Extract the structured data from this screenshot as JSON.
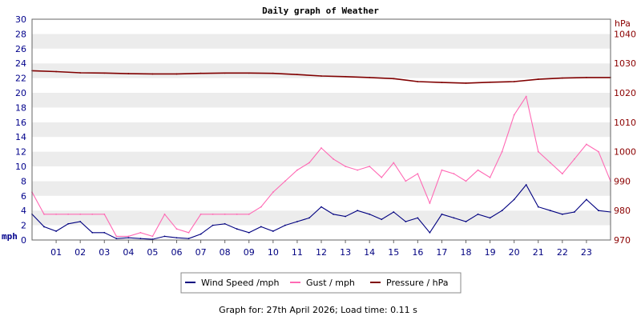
{
  "chart_data": {
    "type": "line",
    "title": "Daily graph of Weather",
    "x_ticks": [
      "01",
      "02",
      "03",
      "04",
      "05",
      "06",
      "07",
      "08",
      "09",
      "10",
      "11",
      "12",
      "13",
      "14",
      "15",
      "16",
      "17",
      "18",
      "19",
      "20",
      "21",
      "22",
      "23"
    ],
    "xlim": [
      0,
      24
    ],
    "left_axis": {
      "label": "mph",
      "ylim": [
        0,
        30
      ],
      "ticks": [
        "0",
        "2",
        "4",
        "6",
        "8",
        "10",
        "12",
        "14",
        "16",
        "18",
        "20",
        "22",
        "24",
        "26",
        "28",
        "30"
      ]
    },
    "right_axis": {
      "label": "hPa",
      "ylim": [
        970,
        1045
      ],
      "ticks": [
        "970",
        "980",
        "990",
        "1000",
        "1010",
        "1020",
        "1030",
        "1040"
      ]
    },
    "grid": true,
    "legend_position": "bottom",
    "series": [
      {
        "name": "Wind Speed /mph",
        "color": "#000080",
        "axis": "left",
        "x": [
          0,
          0.5,
          1,
          1.5,
          2,
          2.5,
          3,
          3.5,
          4,
          4.5,
          5,
          5.5,
          6,
          6.5,
          7,
          7.5,
          8,
          8.5,
          9,
          9.5,
          10,
          10.5,
          11,
          11.5,
          12,
          12.5,
          13,
          13.5,
          14,
          14.5,
          15,
          15.5,
          16,
          16.5,
          17,
          17.5,
          18,
          18.5,
          19,
          19.5,
          20,
          20.5,
          21,
          21.5,
          22,
          22.5,
          23,
          23.5,
          24
        ],
        "values": [
          3.5,
          1.8,
          1.2,
          2.2,
          2.5,
          1.0,
          1.0,
          0.2,
          0.3,
          0.2,
          0.1,
          0.5,
          0.3,
          0.2,
          0.8,
          2.0,
          2.2,
          1.5,
          1.0,
          1.8,
          1.2,
          2.0,
          2.5,
          3.0,
          4.5,
          3.5,
          3.2,
          4.0,
          3.5,
          2.8,
          3.8,
          2.5,
          3.0,
          1.0,
          3.5,
          3.0,
          2.5,
          3.5,
          3.0,
          4.0,
          5.5,
          7.5,
          4.5,
          4.0,
          3.5,
          3.8,
          5.5,
          4.0,
          3.8
        ]
      },
      {
        "name": "Gust / mph",
        "color": "#ff69b4",
        "axis": "left",
        "x": [
          0,
          0.5,
          1,
          1.5,
          2,
          2.5,
          3,
          3.5,
          4,
          4.5,
          5,
          5.5,
          6,
          6.5,
          7,
          7.5,
          8,
          8.5,
          9,
          9.5,
          10,
          10.5,
          11,
          11.5,
          12,
          12.5,
          13,
          13.5,
          14,
          14.5,
          15,
          15.5,
          16,
          16.5,
          17,
          17.5,
          18,
          18.5,
          19,
          19.5,
          20,
          20.5,
          21,
          21.5,
          22,
          22.5,
          23,
          23.5,
          24
        ],
        "values": [
          6.5,
          3.5,
          3.5,
          3.5,
          3.5,
          3.5,
          3.5,
          0.5,
          0.5,
          1.0,
          0.5,
          3.5,
          1.5,
          1.0,
          3.5,
          3.5,
          3.5,
          3.5,
          3.5,
          4.5,
          6.5,
          8.0,
          9.5,
          10.5,
          12.5,
          11.0,
          10.0,
          9.5,
          10.0,
          8.5,
          10.5,
          8.0,
          9.0,
          5.0,
          9.5,
          9.0,
          8.0,
          9.5,
          8.5,
          12.0,
          17.0,
          19.5,
          12.0,
          10.5,
          9.0,
          11.0,
          13.0,
          12.0,
          8.0
        ]
      },
      {
        "name": "Pressure / hPa",
        "color": "#800000",
        "axis": "right",
        "x": [
          0,
          1,
          2,
          3,
          4,
          5,
          6,
          7,
          8,
          9,
          10,
          11,
          12,
          13,
          14,
          15,
          16,
          17,
          18,
          19,
          20,
          21,
          22,
          23,
          24
        ],
        "values": [
          1027.5,
          1027.2,
          1026.8,
          1026.7,
          1026.5,
          1026.4,
          1026.4,
          1026.6,
          1026.7,
          1026.7,
          1026.6,
          1026.2,
          1025.7,
          1025.5,
          1025.2,
          1024.8,
          1023.8,
          1023.5,
          1023.3,
          1023.6,
          1023.8,
          1024.6,
          1025.0,
          1025.2,
          1025.2
        ]
      }
    ]
  },
  "footer": "Graph for: 27th April 2026; Load time: 0.11 s"
}
